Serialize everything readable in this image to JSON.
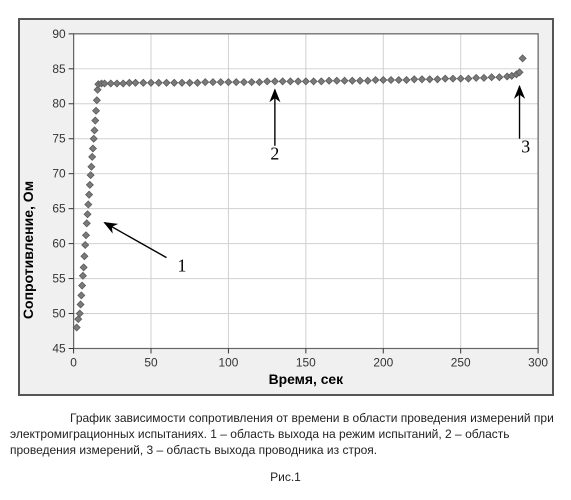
{
  "chart": {
    "type": "scatter",
    "xlabel": "Время, сек",
    "ylabel": "Сопротивление, Ом",
    "label_fontsize": 14,
    "tick_fontsize": 12,
    "xlim": [
      0,
      300
    ],
    "ylim": [
      45,
      90
    ],
    "xtick_step": 50,
    "ytick_step": 5,
    "background_color": "#ffffff",
    "frame_color": "#555555",
    "grid_color": "#d0d0d0",
    "marker_color": "#7a7a7a",
    "marker_outline": "#5a5a5a",
    "marker_size": 7,
    "series_points": [
      [
        2,
        48.0
      ],
      [
        3,
        49.2
      ],
      [
        4,
        50.0
      ],
      [
        4.5,
        51.3
      ],
      [
        5,
        52.6
      ],
      [
        5.5,
        54.0
      ],
      [
        6,
        55.4
      ],
      [
        6.5,
        56.6
      ],
      [
        7,
        58.2
      ],
      [
        7.5,
        59.8
      ],
      [
        8,
        61.2
      ],
      [
        8.5,
        62.9
      ],
      [
        9,
        64.2
      ],
      [
        9.5,
        65.6
      ],
      [
        10,
        67.0
      ],
      [
        10.5,
        68.4
      ],
      [
        11,
        69.8
      ],
      [
        11.5,
        71.0
      ],
      [
        12,
        72.4
      ],
      [
        12.5,
        73.6
      ],
      [
        13,
        75.0
      ],
      [
        13.5,
        76.2
      ],
      [
        14,
        77.6
      ],
      [
        14.5,
        79.0
      ],
      [
        15,
        80.5
      ],
      [
        15.5,
        82.0
      ],
      [
        16,
        82.8
      ],
      [
        18,
        82.9
      ],
      [
        20,
        82.9
      ],
      [
        24,
        82.9
      ],
      [
        28,
        82.9
      ],
      [
        32,
        82.9
      ],
      [
        36,
        83.0
      ],
      [
        40,
        83.0
      ],
      [
        45,
        83.0
      ],
      [
        50,
        83.0
      ],
      [
        55,
        83.0
      ],
      [
        60,
        83.0
      ],
      [
        65,
        83.0
      ],
      [
        70,
        83.0
      ],
      [
        75,
        83.0
      ],
      [
        80,
        83.0
      ],
      [
        85,
        83.1
      ],
      [
        90,
        83.1
      ],
      [
        95,
        83.1
      ],
      [
        100,
        83.1
      ],
      [
        105,
        83.1
      ],
      [
        110,
        83.1
      ],
      [
        115,
        83.1
      ],
      [
        120,
        83.1
      ],
      [
        125,
        83.2
      ],
      [
        130,
        83.2
      ],
      [
        135,
        83.2
      ],
      [
        140,
        83.2
      ],
      [
        145,
        83.2
      ],
      [
        150,
        83.2
      ],
      [
        155,
        83.2
      ],
      [
        160,
        83.2
      ],
      [
        165,
        83.3
      ],
      [
        170,
        83.3
      ],
      [
        175,
        83.3
      ],
      [
        180,
        83.3
      ],
      [
        185,
        83.3
      ],
      [
        190,
        83.3
      ],
      [
        195,
        83.4
      ],
      [
        200,
        83.4
      ],
      [
        205,
        83.4
      ],
      [
        210,
        83.4
      ],
      [
        215,
        83.4
      ],
      [
        220,
        83.5
      ],
      [
        225,
        83.5
      ],
      [
        230,
        83.5
      ],
      [
        235,
        83.5
      ],
      [
        240,
        83.6
      ],
      [
        245,
        83.6
      ],
      [
        250,
        83.6
      ],
      [
        255,
        83.6
      ],
      [
        260,
        83.7
      ],
      [
        265,
        83.7
      ],
      [
        270,
        83.8
      ],
      [
        275,
        83.8
      ],
      [
        280,
        83.9
      ],
      [
        283,
        84.0
      ],
      [
        286,
        84.2
      ],
      [
        288,
        84.5
      ],
      [
        290,
        86.5
      ]
    ],
    "annotations": [
      {
        "num": "1",
        "num_x": 70,
        "num_y": 56,
        "arrow_from_x": 60,
        "arrow_from_y": 58,
        "arrow_to_x": 20,
        "arrow_to_y": 63
      },
      {
        "num": "2",
        "num_x": 130,
        "num_y": 72,
        "arrow_from_x": 130,
        "arrow_from_y": 74,
        "arrow_to_x": 130,
        "arrow_to_y": 82
      },
      {
        "num": "3",
        "num_x": 292,
        "num_y": 73,
        "arrow_from_x": 288,
        "arrow_from_y": 75,
        "arrow_to_x": 288,
        "arrow_to_y": 82.5
      }
    ]
  },
  "caption": {
    "text": "График зависимости сопротивления от времени в области проведения измерений при электромиграционных испытаниях. 1 – область выхода на режим испытаний, 2 – область проведения измерений, 3 – область выхода проводника из строя.",
    "figure_label": "Рис.1"
  }
}
